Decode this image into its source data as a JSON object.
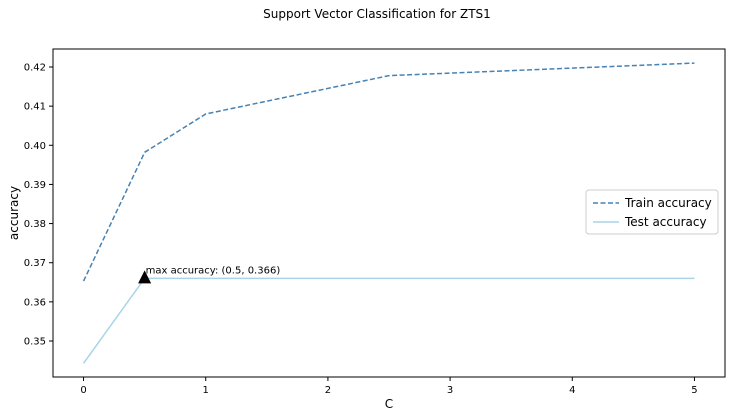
{
  "chart_data": {
    "type": "line",
    "title": "Support Vector Classification for ZTS1",
    "xlabel": "C",
    "ylabel": "accuracy",
    "xlim": [
      -0.25,
      5.25
    ],
    "ylim": [
      0.3408,
      0.4246
    ],
    "xticks": [
      0,
      1,
      2,
      3,
      4,
      5
    ],
    "xtick_labels": [
      "0",
      "1",
      "2",
      "3",
      "4",
      "5"
    ],
    "yticks": [
      0.35,
      0.36,
      0.37,
      0.38,
      0.39,
      0.4,
      0.41,
      0.42
    ],
    "ytick_labels": [
      "0.35",
      "0.36",
      "0.37",
      "0.38",
      "0.39",
      "0.40",
      "0.41",
      "0.42"
    ],
    "grid": false,
    "legend_position": "center-right",
    "series": [
      {
        "name": "Train accuracy",
        "style": "dashed",
        "color": "#4682b4",
        "x": [
          0,
          0.5,
          1,
          2.5,
          5
        ],
        "y": [
          0.3653,
          0.3982,
          0.408,
          0.4178,
          0.421
        ]
      },
      {
        "name": "Test accuracy",
        "style": "solid",
        "color": "#a8d4ea",
        "x": [
          0,
          0.5,
          1,
          2.5,
          5
        ],
        "y": [
          0.3443,
          0.366,
          0.366,
          0.366,
          0.366
        ]
      }
    ],
    "annotation": {
      "text": "max accuracy: (0.5, 0.366)",
      "x": 0.5,
      "y": 0.366,
      "marker_color": "#000000"
    }
  }
}
